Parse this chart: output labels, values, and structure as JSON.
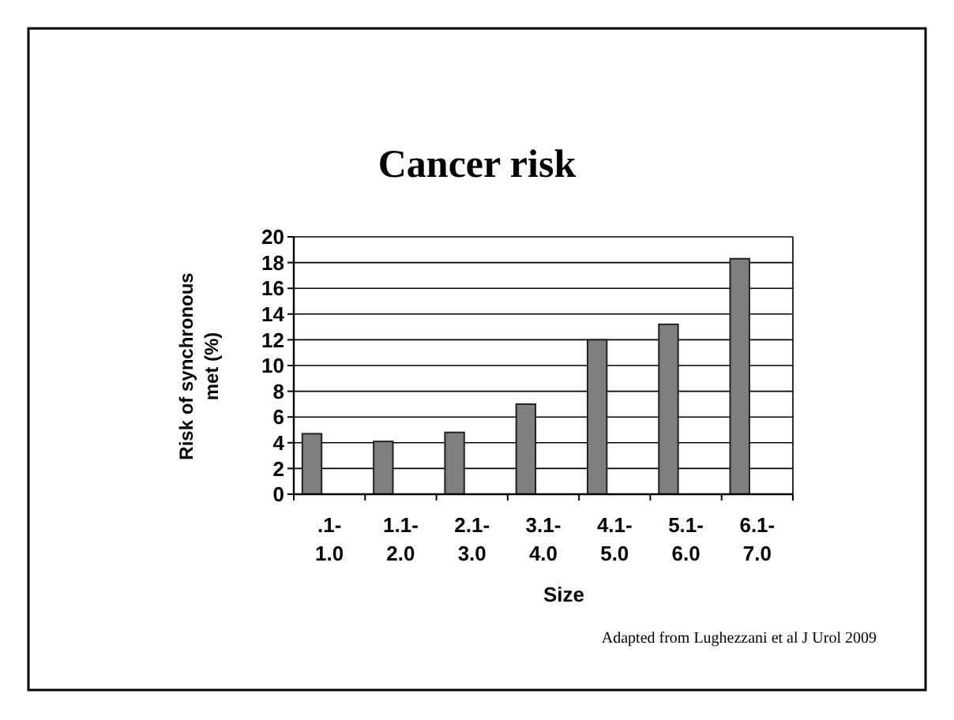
{
  "chart_data": {
    "type": "bar",
    "title": "Cancer risk",
    "xlabel": "Size",
    "ylabel": "Risk of synchronous met (%)",
    "categories": [
      ".1- 1.0",
      "1.1- 2.0",
      "2.1- 3.0",
      "3.1- 4.0",
      "4.1- 5.0",
      "5.1- 6.0",
      "6.1- 7.0"
    ],
    "values": [
      4.7,
      4.1,
      4.8,
      7.0,
      12.0,
      13.2,
      18.3
    ],
    "color": "#7f7f7f",
    "ylim": [
      0,
      20
    ],
    "yticks": [
      0,
      2,
      4,
      6,
      8,
      10,
      12,
      14,
      16,
      18,
      20
    ],
    "grid": "y",
    "annotations": [
      "Adapted from Lughezzani et al J Urol 2009"
    ]
  }
}
